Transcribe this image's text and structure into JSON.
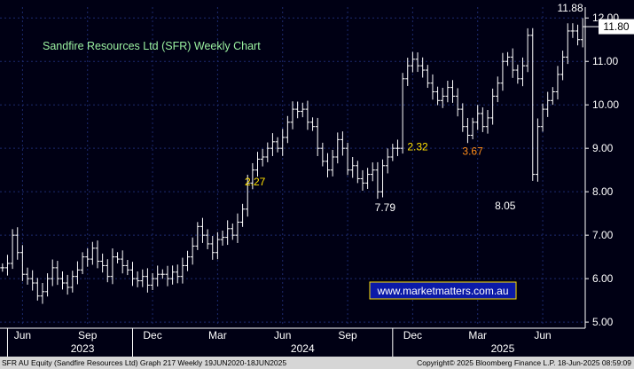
{
  "chart_data": {
    "type": "line",
    "title": "Sandfire Resources Ltd (SFR) Weekly Chart",
    "watermark": "www.marketmatters.com.au",
    "ylim": [
      4.9,
      12.25
    ],
    "y_ticks": [
      "5.00",
      "6.00",
      "7.00",
      "8.00",
      "9.00",
      "10.00",
      "11.00",
      "12.00"
    ],
    "y_tick_values": [
      5,
      6,
      7,
      8,
      9,
      10,
      11,
      12
    ],
    "x_month_labels": [
      "Jun",
      "Sep",
      "Dec",
      "Mar",
      "Jun",
      "Sep",
      "Dec",
      "Mar",
      "Jun"
    ],
    "x_month_index": [
      4,
      17,
      30,
      43,
      56,
      69,
      82,
      95,
      108
    ],
    "x_year_labels": [
      "2023",
      "2024",
      "2025"
    ],
    "x_year_index": [
      16,
      60,
      100
    ],
    "price_tag": "11.80",
    "last_value": 11.8,
    "series": [
      {
        "color": "#ffffff",
        "values": [
          6.25,
          6.35,
          7.0,
          6.6,
          6.1,
          6.0,
          5.9,
          5.6,
          5.7,
          6.0,
          6.25,
          6.0,
          5.9,
          5.8,
          6.05,
          6.2,
          6.5,
          6.45,
          6.7,
          6.4,
          6.3,
          6.05,
          6.5,
          6.45,
          6.3,
          6.2,
          6.0,
          5.95,
          6.05,
          5.85,
          6.0,
          6.1,
          6.1,
          6.0,
          6.15,
          6.05,
          6.3,
          6.5,
          6.75,
          7.2,
          7.0,
          6.8,
          6.6,
          6.9,
          6.95,
          7.15,
          7.0,
          7.3,
          7.6,
          8.2,
          8.5,
          8.75,
          8.8,
          9.0,
          9.15,
          9.0,
          9.25,
          9.6,
          9.9,
          9.85,
          9.9,
          9.6,
          9.5,
          9.0,
          8.7,
          8.5,
          8.8,
          9.2,
          9.0,
          8.5,
          8.6,
          8.3,
          8.2,
          8.4,
          8.5,
          8.0,
          8.6,
          8.8,
          9.0,
          9.0,
          10.6,
          10.9,
          11.05,
          10.9,
          10.8,
          10.5,
          10.3,
          10.1,
          10.2,
          10.4,
          10.2,
          9.9,
          9.5,
          9.3,
          9.6,
          9.8,
          9.5,
          9.7,
          10.2,
          10.5,
          11.0,
          11.1,
          10.8,
          10.6,
          10.9,
          11.6,
          8.4,
          9.5,
          9.9,
          10.1,
          10.3,
          10.7,
          11.1,
          11.7,
          11.7,
          11.5,
          11.8
        ]
      }
    ],
    "annotations": [
      {
        "text": "11.88",
        "x": 113.5,
        "y": 12.15,
        "color": "#ffffff"
      },
      {
        "text": "2.27",
        "x": 50.5,
        "y": 8.15,
        "color": "#ffe000"
      },
      {
        "text": "7.79",
        "x": 76.5,
        "y": 7.55,
        "color": "#ffffff"
      },
      {
        "text": "2.32",
        "x": 83.0,
        "y": 8.95,
        "color": "#ffe000"
      },
      {
        "text": "3.67",
        "x": 94.0,
        "y": 8.85,
        "color": "#ff8c1a"
      },
      {
        "text": "8.05",
        "x": 100.5,
        "y": 7.6,
        "color": "#ffffff"
      }
    ]
  },
  "footer": {
    "left": "SFR AU Equity (Sandfire Resources Ltd) Graph 217  Weekly 19JUN2020-18JUN2025",
    "right": "Copyright© 2025 Bloomberg Finance L.P.        18-Jun-2025 08:59:09"
  },
  "colors": {
    "background": "#000014",
    "grid": "#1c2a6e",
    "title": "#9af0a0",
    "watermark_bg": "#0b1aa8",
    "watermark_border": "#ffe000"
  }
}
